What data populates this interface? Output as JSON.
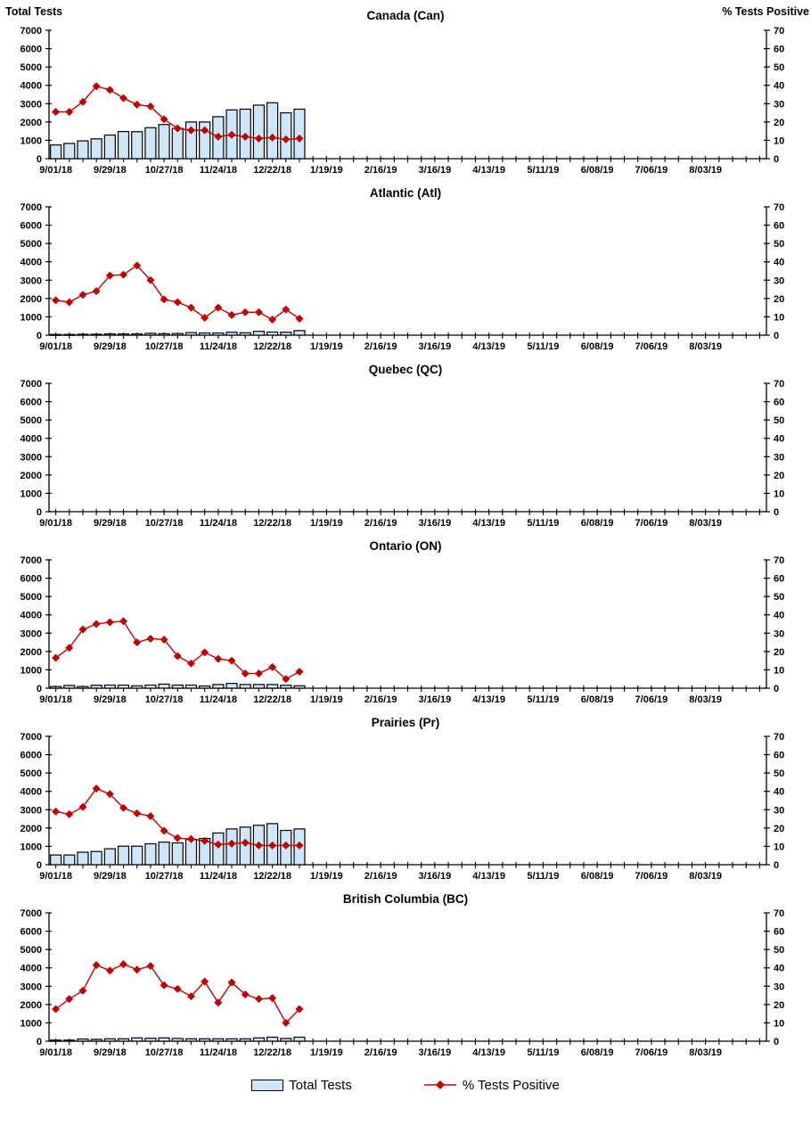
{
  "chart_data": {
    "type": "bar+line-small-multiples",
    "categories": [
      "9/01/18",
      "9/08/18",
      "9/15/18",
      "9/22/18",
      "9/29/18",
      "10/06/18",
      "10/13/18",
      "10/20/18",
      "10/27/18",
      "11/03/18",
      "11/10/18",
      "11/17/18",
      "11/24/18",
      "12/01/18",
      "12/08/18",
      "12/15/18",
      "12/22/18",
      "12/29/18",
      "1/05/19"
    ],
    "x_axis": {
      "tick_labels": [
        "9/01/18",
        "9/29/18",
        "10/27/18",
        "11/24/18",
        "12/22/18",
        "1/19/19",
        "2/16/19",
        "3/16/19",
        "4/13/19",
        "5/11/19",
        "6/08/19",
        "7/06/19",
        "8/03/19"
      ],
      "total_slots": 53,
      "label_every": 4
    },
    "left_axis": {
      "title": "Total Tests",
      "min": 0,
      "max": 7000,
      "step": 1000
    },
    "right_axis": {
      "title": "% Tests Positive",
      "min": 0,
      "max": 70,
      "step": 10
    },
    "legend": [
      {
        "label": "Total Tests",
        "type": "bar"
      },
      {
        "label": "% Tests Positive",
        "type": "line"
      }
    ],
    "charts": [
      {
        "title": "Canada (Can)",
        "total_tests": [
          750,
          830,
          970,
          1080,
          1290,
          1480,
          1470,
          1690,
          1860,
          1650,
          2000,
          2000,
          2290,
          2660,
          2700,
          2920,
          3050,
          2500,
          2700
        ],
        "pct_positive": [
          25.5,
          25.5,
          31,
          39.5,
          37.5,
          33,
          29.5,
          28.5,
          21.5,
          16.5,
          15.5,
          15.5,
          12,
          13,
          12,
          11,
          11.5,
          10.5,
          11
        ]
      },
      {
        "title": "Atlantic (Atl)",
        "total_tests": [
          40,
          40,
          50,
          50,
          70,
          70,
          70,
          100,
          80,
          90,
          140,
          120,
          120,
          160,
          130,
          210,
          170,
          160,
          250
        ],
        "pct_positive": [
          19,
          18,
          22,
          24,
          32.5,
          33,
          38,
          30,
          19.5,
          18,
          15,
          9.5,
          15,
          11,
          12.5,
          12.5,
          8.5,
          14,
          9
        ]
      },
      {
        "title": "Quebec (QC)",
        "total_tests": [],
        "pct_positive": []
      },
      {
        "title": "Ontario (ON)",
        "total_tests": [
          90,
          150,
          90,
          160,
          170,
          170,
          130,
          170,
          220,
          170,
          170,
          120,
          200,
          260,
          200,
          200,
          200,
          160,
          130
        ],
        "pct_positive": [
          16.5,
          22,
          32,
          35,
          36,
          36.5,
          25,
          27,
          26.5,
          17.5,
          13.5,
          19.5,
          16,
          15,
          8,
          8,
          11.5,
          5,
          9
        ]
      },
      {
        "title": "Prairies (Pr)",
        "total_tests": [
          530,
          530,
          680,
          720,
          870,
          1010,
          1010,
          1140,
          1230,
          1190,
          1380,
          1430,
          1730,
          1950,
          2050,
          2150,
          2240,
          1870,
          1950
        ],
        "pct_positive": [
          29,
          27.5,
          31.5,
          41.5,
          38.5,
          31,
          28,
          26.5,
          18.5,
          14.5,
          14,
          13,
          11,
          11.5,
          12,
          10.5,
          10.5,
          10.5,
          10.5
        ]
      },
      {
        "title": "British Columbia (BC)",
        "total_tests": [
          60,
          60,
          120,
          100,
          130,
          130,
          180,
          160,
          180,
          150,
          130,
          130,
          130,
          130,
          130,
          180,
          220,
          150,
          220
        ],
        "pct_positive": [
          17.5,
          23,
          27.5,
          41.5,
          38.5,
          42,
          39,
          41,
          30.5,
          28.5,
          24.5,
          32.5,
          21,
          32,
          25.5,
          23,
          23.5,
          10,
          17.5
        ]
      }
    ]
  },
  "colors": {
    "bar_fill": "#CEE6F8",
    "bar_stroke": "#000000",
    "line": "#C00000",
    "axis": "#000000",
    "text": "#000000"
  }
}
